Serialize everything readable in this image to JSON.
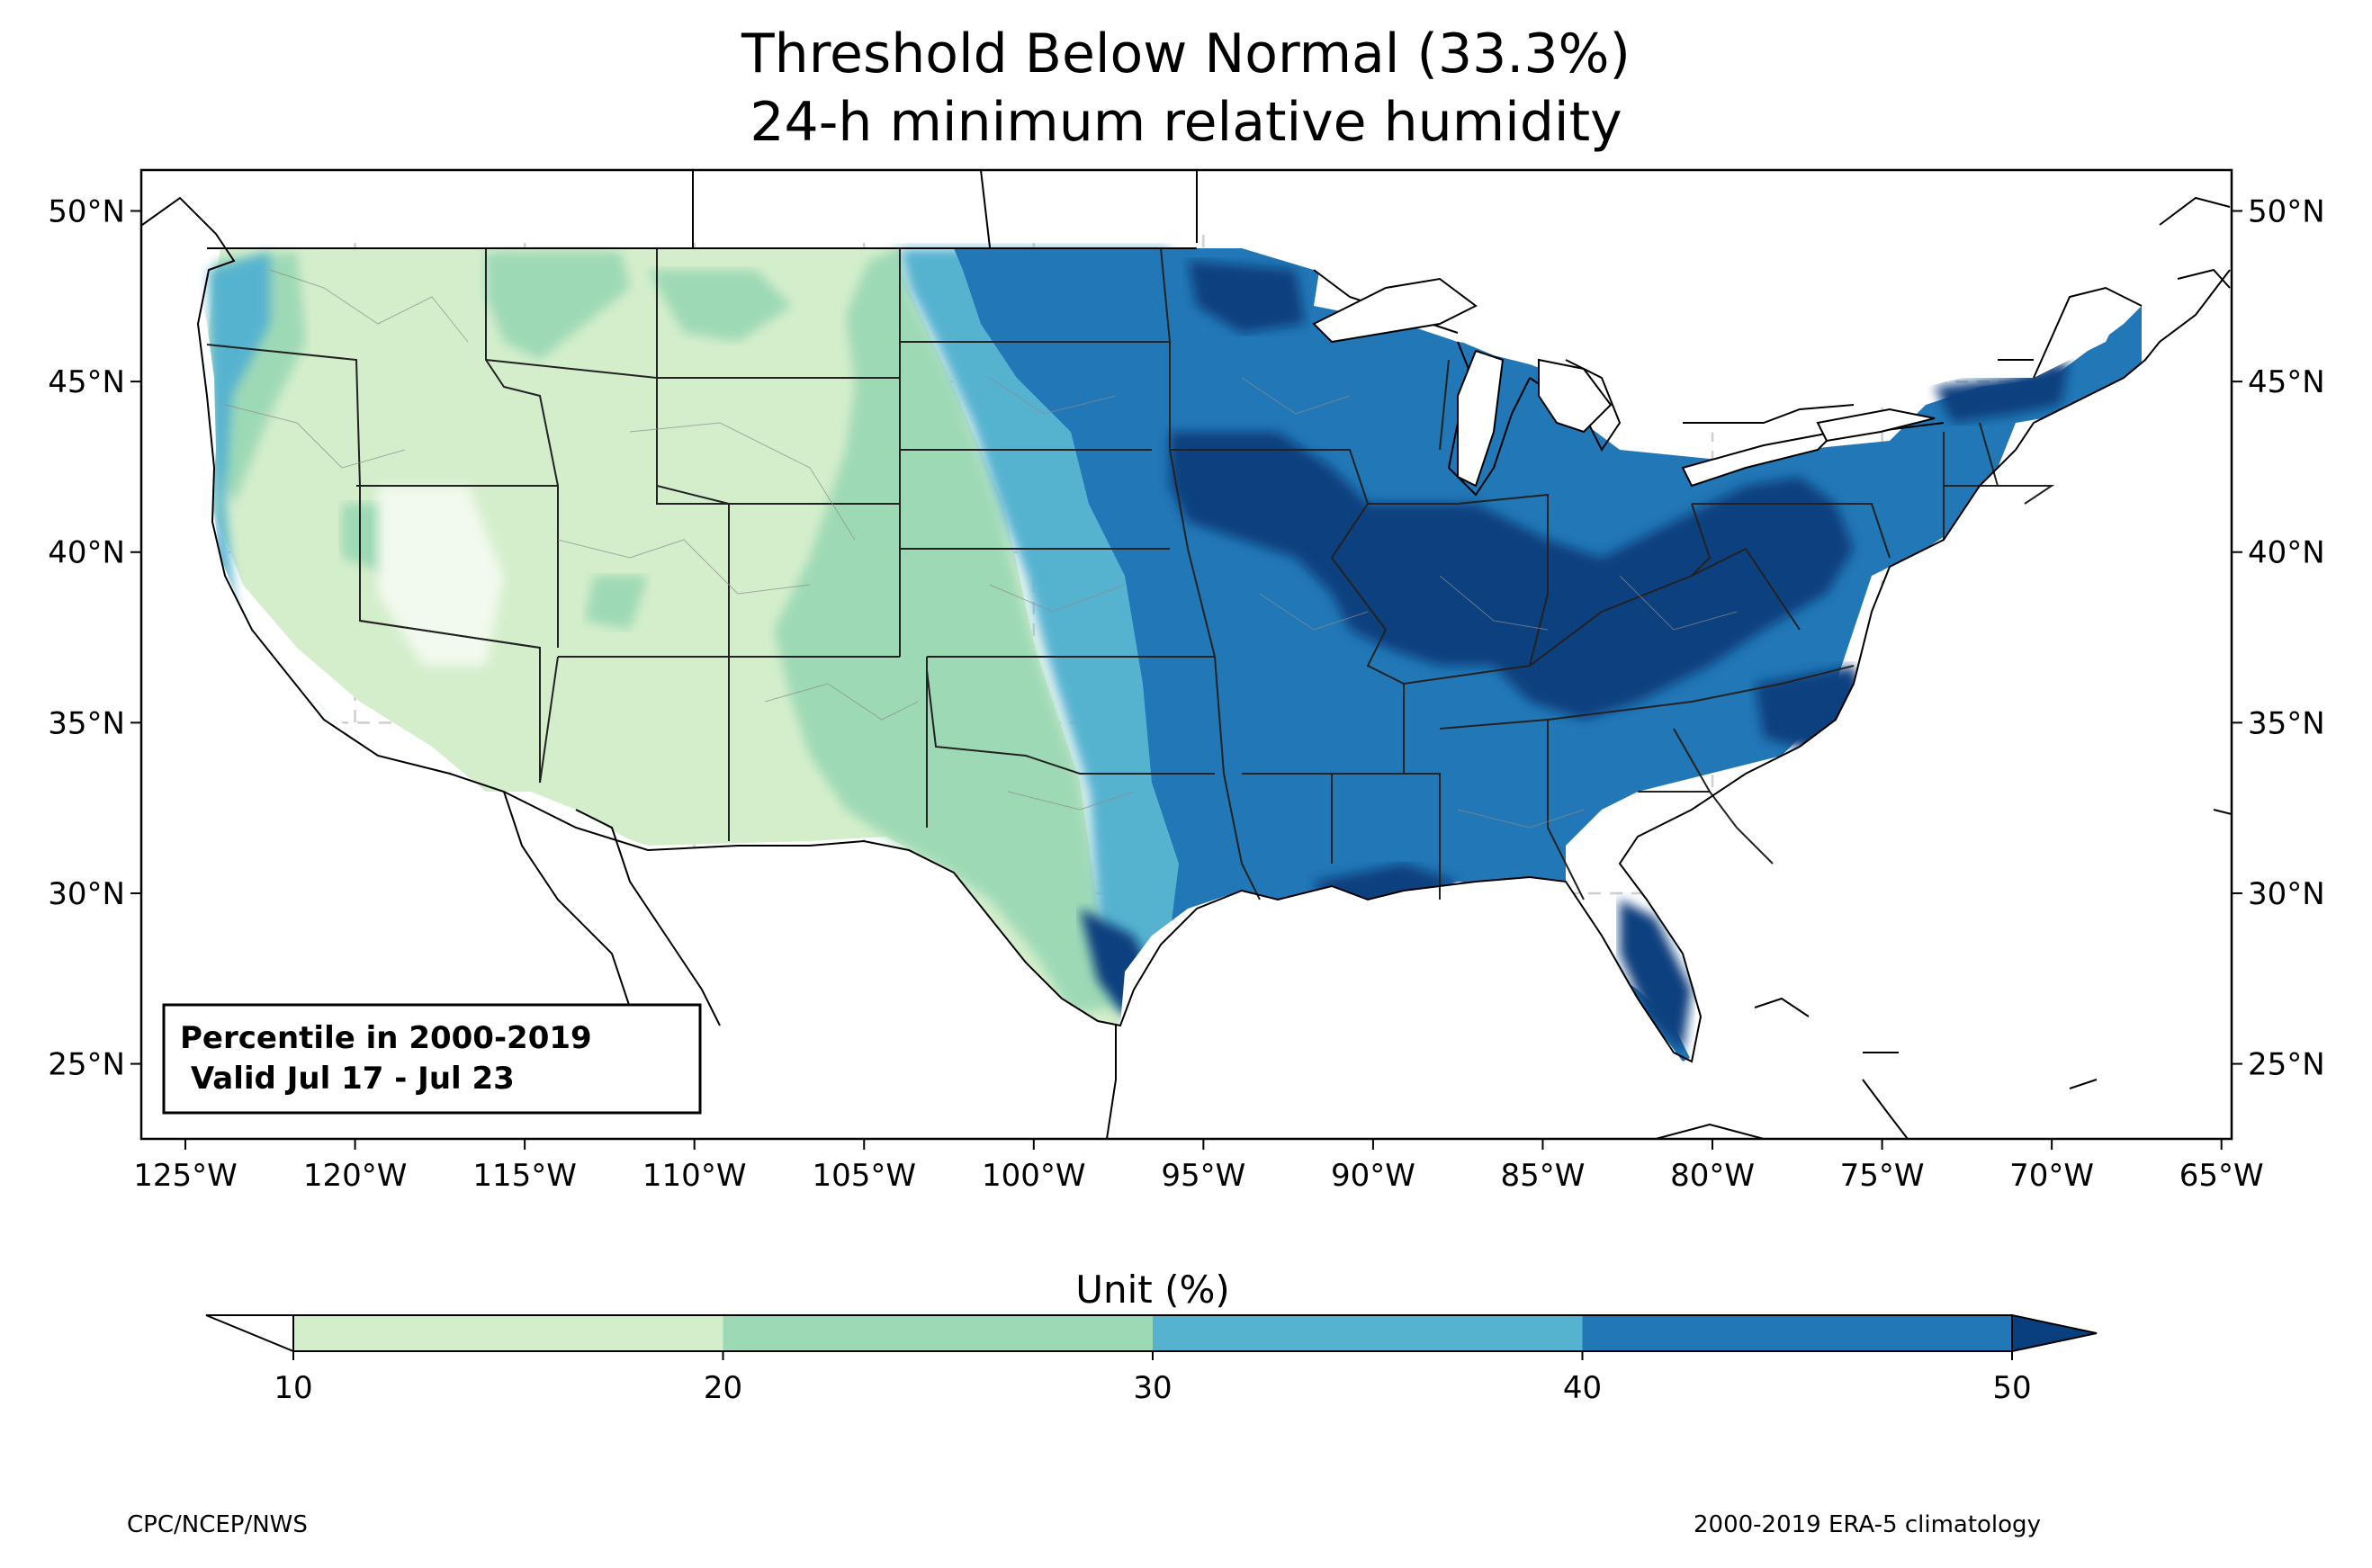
{
  "title": {
    "line1": "Threshold Below Normal (33.3%)",
    "line2": "24-h minimum relative humidity"
  },
  "map": {
    "lon_ticks": [
      "125°W",
      "120°W",
      "115°W",
      "110°W",
      "105°W",
      "100°W",
      "95°W",
      "90°W",
      "85°W",
      "80°W",
      "75°W",
      "70°W",
      "65°W"
    ],
    "lat_ticks": [
      "50°N",
      "45°N",
      "40°N",
      "35°N",
      "30°N",
      "25°N"
    ],
    "lon_range": [
      -126.3,
      -64.7
    ],
    "lat_range": [
      22.8,
      51.2
    ],
    "grid": true
  },
  "info_box": {
    "line1": "Percentile in 2000-2019",
    "line2": " Valid Jul 17 - Jul 23"
  },
  "colorbar": {
    "label": "Unit (%)",
    "ticks": [
      "10",
      "20",
      "30",
      "40",
      "50"
    ],
    "colors": [
      "#d4eecb",
      "#9ed9b6",
      "#56b3d0",
      "#2277b6",
      "#0a3f7f"
    ],
    "under_color": "#ffffff",
    "over_color": "#0a3f7f"
  },
  "footer": {
    "left": "CPC/NCEP/NWS",
    "right": "2000-2019 ERA-5 climatology"
  }
}
